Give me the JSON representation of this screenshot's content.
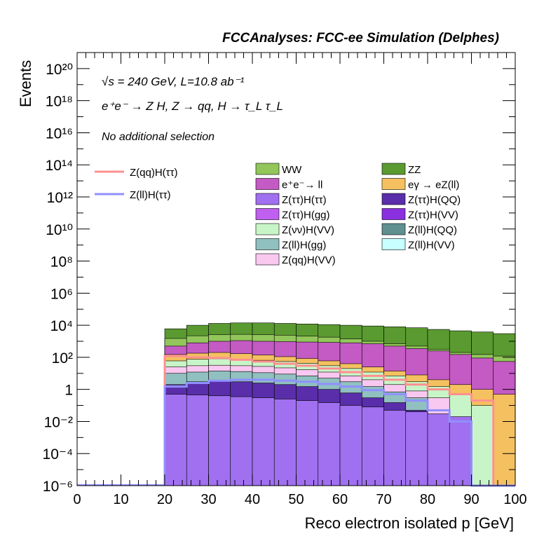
{
  "header": {
    "title": "FCCAnalyses: FCC-ee Simulation (Delphes)",
    "energy_line": "√s = 240 GeV, L=10.8 ab⁻¹",
    "process_line": "e⁺e⁻ → Z H, Z → qq, H → τ_L τ_L",
    "selection_note": "No additional selection"
  },
  "chart_data": {
    "type": "area",
    "xlabel": "Reco electron isolated p [GeV]",
    "ylabel": "Events",
    "xlim": [
      0,
      100
    ],
    "ylim": [
      1e-06,
      1e+21
    ],
    "yscale": "log",
    "x_ticks": [
      0,
      10,
      20,
      30,
      40,
      50,
      60,
      70,
      80,
      90,
      100
    ],
    "y_ticks": [
      {
        "value": 1e-06,
        "label": "10⁻⁶"
      },
      {
        "value": 0.0001,
        "label": "10⁻⁴"
      },
      {
        "value": 0.01,
        "label": "10⁻²"
      },
      {
        "value": 1,
        "label": "1"
      },
      {
        "value": 100.0,
        "label": "10²"
      },
      {
        "value": 10000.0,
        "label": "10⁴"
      },
      {
        "value": 1000000.0,
        "label": "10⁶"
      },
      {
        "value": 100000000.0,
        "label": "10⁸"
      },
      {
        "value": 10000000000.0,
        "label": "10¹⁰"
      },
      {
        "value": 1000000000000.0,
        "label": "10¹²"
      },
      {
        "value": 100000000000000.0,
        "label": "10¹⁴"
      },
      {
        "value": 1e+16,
        "label": "10¹⁶"
      },
      {
        "value": 1e+18,
        "label": "10¹⁸"
      },
      {
        "value": 1e+20,
        "label": "10²⁰"
      }
    ],
    "bin_edges": [
      20,
      25,
      30,
      35,
      40,
      45,
      50,
      55,
      60,
      65,
      70,
      75,
      80,
      85,
      90,
      95,
      100
    ],
    "stacked_totals": [
      {
        "name": "ZZ",
        "color": "#5a9a30",
        "values": [
          6000,
          10000,
          13000,
          14000,
          14000,
          13000,
          12000,
          11000,
          10000,
          9000,
          8000,
          7000,
          5500,
          4500,
          3800,
          3000
        ]
      },
      {
        "name": "WW",
        "color": "#92c65a",
        "values": [
          1500,
          2200,
          2600,
          2700,
          2600,
          2400,
          2100,
          1800,
          1400,
          1000,
          700,
          500,
          320,
          200,
          150,
          120
        ]
      },
      {
        "name": "e⁺e⁻→ ll",
        "color": "#c45ac4",
        "values": [
          500,
          800,
          1000,
          1100,
          1000,
          950,
          900,
          850,
          800,
          700,
          500,
          350,
          250,
          150,
          90,
          55
        ]
      },
      {
        "name": "eγ → eZ(ll)",
        "color": "#f5c060",
        "values": [
          150,
          180,
          200,
          170,
          140,
          110,
          85,
          60,
          40,
          25,
          14,
          8,
          4,
          2,
          1,
          0.5
        ]
      },
      {
        "name": "Z(νν)H(VV)",
        "color": "#c8f5c8",
        "values": [
          60,
          75,
          80,
          75,
          65,
          55,
          42,
          30,
          20,
          12,
          7,
          3,
          1.5,
          0.5,
          0.1,
          0
        ]
      },
      {
        "name": "Z(qq)H(VV)",
        "color": "#f9c8f0",
        "values": [
          25,
          30,
          32,
          30,
          27,
          22,
          17,
          12,
          7,
          4,
          2,
          0.8,
          0.3,
          0,
          0,
          0
        ]
      },
      {
        "name": "Z(ll)H(gg)",
        "color": "#90c0c0",
        "values": [
          10,
          12,
          14,
          13,
          11,
          9,
          7,
          5,
          3,
          1.5,
          0.7,
          0.3,
          0,
          0,
          0,
          0
        ]
      },
      {
        "name": "Z(ττ)H(QQ)",
        "color": "#5a2eaa",
        "values": [
          2,
          3,
          3.5,
          3,
          2.5,
          2,
          1.5,
          1,
          0.6,
          0.3,
          0.15,
          0.05,
          0,
          0,
          0,
          0
        ]
      },
      {
        "name": "Z(ττ)H(ττ)",
        "color": "#a070f0",
        "values": [
          0.5,
          0.45,
          0.4,
          0.35,
          0.3,
          0.25,
          0.2,
          0.15,
          0.1,
          0.08,
          0.05,
          0.04,
          0.03,
          0.02,
          0,
          0
        ]
      }
    ],
    "overlay_series": [
      {
        "name": "Z(qq)H(ττ)",
        "color": "#ff9090",
        "values": [
          120,
          100,
          90,
          70,
          55,
          40,
          30,
          20,
          12,
          7,
          4,
          2,
          1,
          0.5,
          0.2,
          0
        ]
      },
      {
        "name": "Z(ll)H(ττ)",
        "color": "#9090ff",
        "values": [
          1.5,
          2.5,
          3.5,
          4,
          4,
          3.5,
          3,
          2.2,
          1.5,
          0.9,
          0.5,
          0.2,
          0.05,
          0.01,
          0,
          0
        ]
      }
    ],
    "legend_overlay": [
      {
        "name": "Z(qq)H(ττ)",
        "color": "#ff9090"
      },
      {
        "name": "Z(ll)H(ττ)",
        "color": "#9090ff"
      }
    ],
    "legend_stack": [
      {
        "name": "WW",
        "color": "#92c65a"
      },
      {
        "name": "ZZ",
        "color": "#5a9a30"
      },
      {
        "name": "e⁺e⁻→ ll",
        "color": "#c45ac4"
      },
      {
        "name": "eγ → eZ(ll)",
        "color": "#f5c060"
      },
      {
        "name": "Z(ττ)H(ττ)",
        "color": "#a070f0"
      },
      {
        "name": "Z(ττ)H(QQ)",
        "color": "#5a2eaa"
      },
      {
        "name": "Z(ττ)H(gg)",
        "color": "#c060f0"
      },
      {
        "name": "Z(ττ)H(VV)",
        "color": "#8a30e0"
      },
      {
        "name": "Z(νν)H(VV)",
        "color": "#c8f5c8"
      },
      {
        "name": "Z(ll)H(QQ)",
        "color": "#609090"
      },
      {
        "name": "Z(ll)H(gg)",
        "color": "#90c0c0"
      },
      {
        "name": "Z(ll)H(VV)",
        "color": "#c8ffff"
      },
      {
        "name": "Z(qq)H(VV)",
        "color": "#f9c8f0"
      }
    ],
    "grid": false,
    "legend_placement": "top-right"
  }
}
